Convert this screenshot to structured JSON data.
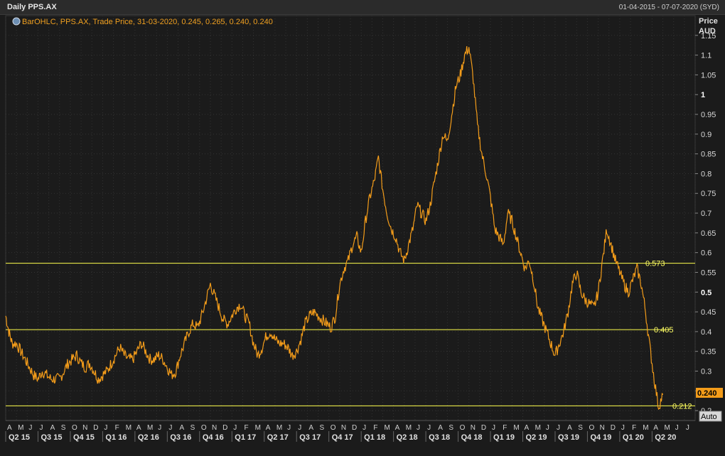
{
  "header": {
    "title": "Daily PPS.AX",
    "date_range": "01-04-2015 - 07-07-2020 (SYD)"
  },
  "legend": {
    "text": "BarOHLC, PPS.AX, Trade Price, 31-03-2020, 0.245, 0.265, 0.240, 0.240"
  },
  "axis": {
    "ylabel_line1": "Price",
    "ylabel_line2": "AUD",
    "auto_button": "Auto"
  },
  "last_price_label": "0.240",
  "colors": {
    "background": "#1b1b1b",
    "series": "#f39c1a",
    "hline": "#ffff4d",
    "grid": "#3a3a3a"
  },
  "chart_data": {
    "type": "line",
    "series_name": "PPS.AX",
    "ylim": [
      0.175,
      1.2
    ],
    "yticks": [
      0.2,
      0.25,
      0.3,
      0.35,
      0.4,
      0.45,
      0.5,
      0.55,
      0.6,
      0.65,
      0.7,
      0.75,
      0.8,
      0.85,
      0.9,
      0.95,
      1,
      1.05,
      1.1,
      1.15
    ],
    "ytick_labels": [
      "0.2",
      "0.25",
      "0.3",
      "0.35",
      "0.4",
      "0.45",
      "0.5",
      "0.55",
      "0.6",
      "0.65",
      "0.7",
      "0.75",
      "0.8",
      "0.85",
      "0.9",
      "0.95",
      "1",
      "1.05",
      "1.1",
      "1.15"
    ],
    "month_labels": [
      "A",
      "M",
      "J",
      "J",
      "A",
      "S",
      "O",
      "N",
      "D",
      "J",
      "F",
      "M",
      "A",
      "M",
      "J",
      "J",
      "A",
      "S",
      "O",
      "N",
      "D",
      "J",
      "F",
      "M",
      "A",
      "M",
      "J",
      "J",
      "A",
      "S",
      "O",
      "N",
      "D",
      "J",
      "F",
      "M",
      "A",
      "M",
      "J",
      "J",
      "A",
      "S",
      "O",
      "N",
      "D",
      "J",
      "F",
      "M",
      "A",
      "M",
      "J",
      "J",
      "A",
      "S",
      "O",
      "N",
      "D",
      "J",
      "F",
      "M",
      "A",
      "M",
      "J",
      "J"
    ],
    "quarter_labels": [
      "Q2 15",
      "Q3 15",
      "Q4 15",
      "Q1 16",
      "Q2 16",
      "Q3 16",
      "Q4 16",
      "Q1 17",
      "Q2 17",
      "Q3 17",
      "Q4 17",
      "Q1 18",
      "Q2 18",
      "Q3 18",
      "Q4 18",
      "Q1 19",
      "Q2 19",
      "Q3 19",
      "Q4 19",
      "Q1 20",
      "Q2 20"
    ],
    "x_start": "2015-04",
    "x_end": "2020-07",
    "horizontal_lines": [
      {
        "value": 0.573,
        "label": "0.573"
      },
      {
        "value": 0.405,
        "label": "0.405"
      },
      {
        "value": 0.212,
        "label": "0.212"
      }
    ],
    "points": [
      [
        0.0,
        0.44
      ],
      [
        0.3,
        0.4
      ],
      [
        0.6,
        0.37
      ],
      [
        1.0,
        0.37
      ],
      [
        1.4,
        0.35
      ],
      [
        1.8,
        0.33
      ],
      [
        2.2,
        0.31
      ],
      [
        2.6,
        0.29
      ],
      [
        3.0,
        0.28
      ],
      [
        3.4,
        0.3
      ],
      [
        3.8,
        0.29
      ],
      [
        4.2,
        0.28
      ],
      [
        4.6,
        0.28
      ],
      [
        5.0,
        0.28
      ],
      [
        5.4,
        0.3
      ],
      [
        5.8,
        0.32
      ],
      [
        6.2,
        0.33
      ],
      [
        6.6,
        0.34
      ],
      [
        7.0,
        0.32
      ],
      [
        7.4,
        0.31
      ],
      [
        7.8,
        0.32
      ],
      [
        8.2,
        0.3
      ],
      [
        8.6,
        0.28
      ],
      [
        9.0,
        0.29
      ],
      [
        9.4,
        0.3
      ],
      [
        9.8,
        0.32
      ],
      [
        10.2,
        0.34
      ],
      [
        10.6,
        0.36
      ],
      [
        11.0,
        0.34
      ],
      [
        11.4,
        0.33
      ],
      [
        11.8,
        0.33
      ],
      [
        12.2,
        0.35
      ],
      [
        12.6,
        0.37
      ],
      [
        13.0,
        0.35
      ],
      [
        13.4,
        0.33
      ],
      [
        13.8,
        0.33
      ],
      [
        14.2,
        0.34
      ],
      [
        14.6,
        0.33
      ],
      [
        15.0,
        0.31
      ],
      [
        15.4,
        0.29
      ],
      [
        15.8,
        0.3
      ],
      [
        16.2,
        0.34
      ],
      [
        16.6,
        0.37
      ],
      [
        17.0,
        0.4
      ],
      [
        17.4,
        0.42
      ],
      [
        17.8,
        0.41
      ],
      [
        18.2,
        0.44
      ],
      [
        18.6,
        0.48
      ],
      [
        19.0,
        0.52
      ],
      [
        19.4,
        0.49
      ],
      [
        19.8,
        0.46
      ],
      [
        20.2,
        0.43
      ],
      [
        20.6,
        0.42
      ],
      [
        21.0,
        0.44
      ],
      [
        21.4,
        0.46
      ],
      [
        21.8,
        0.47
      ],
      [
        22.2,
        0.44
      ],
      [
        22.6,
        0.42
      ],
      [
        23.0,
        0.37
      ],
      [
        23.4,
        0.34
      ],
      [
        23.8,
        0.36
      ],
      [
        24.2,
        0.39
      ],
      [
        24.6,
        0.4
      ],
      [
        25.0,
        0.38
      ],
      [
        25.4,
        0.37
      ],
      [
        25.8,
        0.37
      ],
      [
        26.2,
        0.36
      ],
      [
        26.6,
        0.34
      ],
      [
        27.0,
        0.35
      ],
      [
        27.4,
        0.38
      ],
      [
        27.8,
        0.42
      ],
      [
        28.2,
        0.44
      ],
      [
        28.6,
        0.45
      ],
      [
        29.0,
        0.44
      ],
      [
        29.4,
        0.43
      ],
      [
        29.8,
        0.42
      ],
      [
        30.2,
        0.41
      ],
      [
        30.6,
        0.44
      ],
      [
        31.0,
        0.52
      ],
      [
        31.4,
        0.56
      ],
      [
        31.8,
        0.58
      ],
      [
        32.2,
        0.62
      ],
      [
        32.6,
        0.64
      ],
      [
        33.0,
        0.6
      ],
      [
        33.4,
        0.68
      ],
      [
        33.8,
        0.74
      ],
      [
        34.2,
        0.78
      ],
      [
        34.6,
        0.84
      ],
      [
        35.0,
        0.76
      ],
      [
        35.4,
        0.7
      ],
      [
        35.8,
        0.66
      ],
      [
        36.2,
        0.64
      ],
      [
        36.6,
        0.6
      ],
      [
        37.0,
        0.58
      ],
      [
        37.4,
        0.62
      ],
      [
        37.8,
        0.66
      ],
      [
        38.2,
        0.72
      ],
      [
        38.6,
        0.7
      ],
      [
        39.0,
        0.68
      ],
      [
        39.4,
        0.72
      ],
      [
        39.8,
        0.78
      ],
      [
        40.2,
        0.84
      ],
      [
        40.6,
        0.9
      ],
      [
        41.0,
        0.88
      ],
      [
        41.4,
        0.95
      ],
      [
        41.8,
        1.02
      ],
      [
        42.2,
        1.05
      ],
      [
        42.6,
        1.1
      ],
      [
        43.0,
        1.12
      ],
      [
        43.4,
        1.04
      ],
      [
        43.8,
        0.92
      ],
      [
        44.2,
        0.85
      ],
      [
        44.6,
        0.8
      ],
      [
        45.0,
        0.74
      ],
      [
        45.4,
        0.66
      ],
      [
        45.8,
        0.64
      ],
      [
        46.2,
        0.62
      ],
      [
        46.6,
        0.7
      ],
      [
        47.0,
        0.68
      ],
      [
        47.4,
        0.64
      ],
      [
        47.8,
        0.6
      ],
      [
        48.2,
        0.56
      ],
      [
        48.6,
        0.58
      ],
      [
        49.0,
        0.53
      ],
      [
        49.4,
        0.46
      ],
      [
        49.8,
        0.43
      ],
      [
        50.2,
        0.4
      ],
      [
        50.6,
        0.37
      ],
      [
        51.0,
        0.34
      ],
      [
        51.4,
        0.37
      ],
      [
        51.8,
        0.4
      ],
      [
        52.2,
        0.45
      ],
      [
        52.6,
        0.52
      ],
      [
        53.0,
        0.55
      ],
      [
        53.4,
        0.5
      ],
      [
        53.8,
        0.48
      ],
      [
        54.2,
        0.47
      ],
      [
        54.6,
        0.46
      ],
      [
        55.0,
        0.5
      ],
      [
        55.4,
        0.58
      ],
      [
        55.8,
        0.66
      ],
      [
        56.2,
        0.62
      ],
      [
        56.6,
        0.58
      ],
      [
        57.0,
        0.55
      ],
      [
        57.4,
        0.52
      ],
      [
        57.8,
        0.5
      ],
      [
        58.2,
        0.53
      ],
      [
        58.6,
        0.56
      ],
      [
        59.0,
        0.52
      ],
      [
        59.4,
        0.45
      ],
      [
        59.8,
        0.36
      ],
      [
        60.2,
        0.28
      ],
      [
        60.6,
        0.21
      ],
      [
        61.0,
        0.24
      ]
    ]
  }
}
